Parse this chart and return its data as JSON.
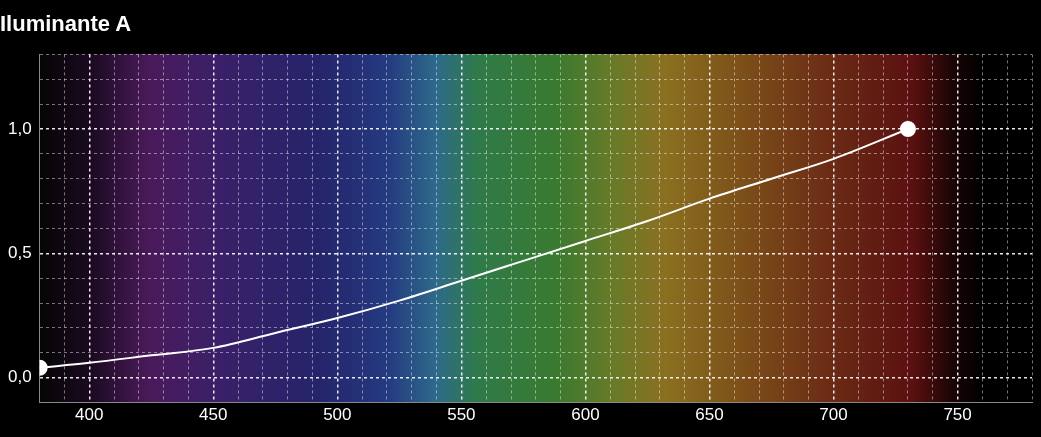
{
  "chart_data": {
    "type": "line",
    "title": "Iluminante A",
    "x": [
      380,
      400,
      425,
      450,
      475,
      500,
      525,
      550,
      575,
      600,
      625,
      650,
      675,
      700,
      730
    ],
    "series": [
      {
        "color": "#ffffff",
        "values": [
          0.04,
          0.06,
          0.09,
          0.12,
          0.18,
          0.24,
          0.31,
          0.39,
          0.47,
          0.55,
          0.63,
          0.72,
          0.8,
          0.88,
          1.0
        ]
      },
      {
        "type": "scatter",
        "color": "#ffffff",
        "x": [
          380,
          730
        ],
        "values": [
          0.04,
          1.0
        ],
        "marker": "circle"
      }
    ],
    "xlim": [
      380,
      780
    ],
    "xticks": [
      {
        "value": 380,
        "label": null
      },
      {
        "value": 390,
        "label": null
      },
      400,
      {
        "value": 410,
        "label": null
      },
      {
        "value": 420,
        "label": null
      },
      {
        "value": 430,
        "label": null
      },
      {
        "value": 440,
        "label": null
      },
      450,
      {
        "value": 460,
        "label": null
      },
      {
        "value": 470,
        "label": null
      },
      {
        "value": 480,
        "label": null
      },
      {
        "value": 490,
        "label": null
      },
      500,
      {
        "value": 510,
        "label": null
      },
      {
        "value": 520,
        "label": null
      },
      {
        "value": 530,
        "label": null
      },
      {
        "value": 540,
        "label": null
      },
      550,
      {
        "value": 560,
        "label": null
      },
      {
        "value": 570,
        "label": null
      },
      {
        "value": 580,
        "label": null
      },
      {
        "value": 590,
        "label": null
      },
      600,
      {
        "value": 610,
        "label": null
      },
      {
        "value": 620,
        "label": null
      },
      {
        "value": 630,
        "label": null
      },
      {
        "value": 640,
        "label": null
      },
      650,
      {
        "value": 660,
        "label": null
      },
      {
        "value": 670,
        "label": null
      },
      {
        "value": 680,
        "label": null
      },
      {
        "value": 690,
        "label": null
      },
      700,
      {
        "value": 710,
        "label": null
      },
      {
        "value": 720,
        "label": null
      },
      {
        "value": 730,
        "label": null
      },
      {
        "value": 740,
        "label": null
      },
      750,
      {
        "value": 760,
        "label": null
      },
      {
        "value": 770,
        "label": null
      },
      {
        "value": 780,
        "label": null
      }
    ],
    "ylim": [
      -0.1,
      1.3
    ],
    "yticks": [
      {
        "value": -0.1,
        "label": null
      },
      {
        "value": 0,
        "label": "0,0"
      },
      {
        "value": 0.1,
        "label": null
      },
      {
        "value": 0.2,
        "label": null
      },
      {
        "value": 0.3,
        "label": null
      },
      {
        "value": 0.4,
        "label": null
      },
      {
        "value": 0.5,
        "label": "0,5"
      },
      {
        "value": 0.6,
        "label": null
      },
      {
        "value": 0.7,
        "label": null
      },
      {
        "value": 0.8,
        "label": null
      },
      {
        "value": 0.9,
        "label": null
      },
      {
        "value": 1.0,
        "label": "1,0"
      },
      {
        "value": 1.1,
        "label": null
      },
      {
        "value": 1.2,
        "label": null
      },
      {
        "value": 1.3,
        "label": null
      }
    ],
    "grid": true,
    "marker": "none",
    "legend": false
  }
}
